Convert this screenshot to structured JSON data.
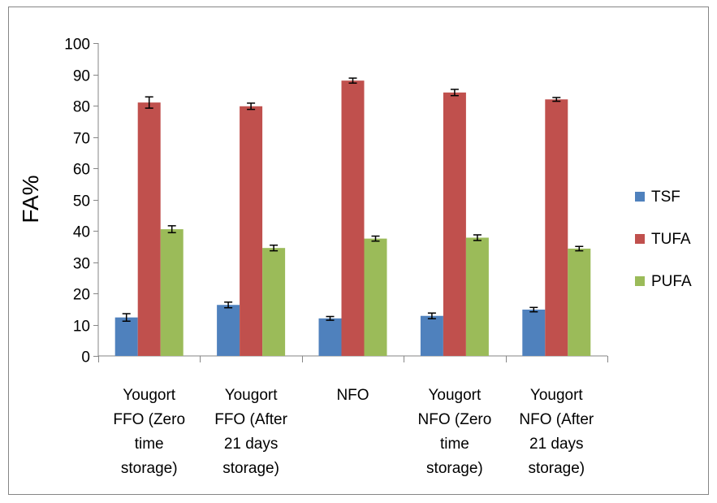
{
  "chart_data": {
    "type": "bar",
    "title": "",
    "xlabel": "",
    "ylabel": "FA%",
    "ylim": [
      0,
      100
    ],
    "yticks": [
      0,
      10,
      20,
      30,
      40,
      50,
      60,
      70,
      80,
      90,
      100
    ],
    "grid": false,
    "legend_position": "right",
    "categories": [
      [
        "Yougort",
        "FFO (Zero",
        "time",
        "storage)"
      ],
      [
        "Yougort",
        "FFO (After",
        "21 days",
        "storage)"
      ],
      [
        "NFO"
      ],
      [
        "Yougort",
        "NFO  (Zero",
        "time",
        "storage)"
      ],
      [
        "Yougort",
        "NFO  (After",
        "21 days",
        "storage)"
      ]
    ],
    "series": [
      {
        "name": "TSF",
        "color": "#4F81BD",
        "values": [
          12.3,
          16.3,
          12.0,
          12.8,
          14.8
        ],
        "errors": [
          1.2,
          0.9,
          0.6,
          0.9,
          0.7
        ]
      },
      {
        "name": "TUFA",
        "color": "#C0504D",
        "values": [
          81.0,
          79.8,
          88.0,
          84.2,
          82.0
        ],
        "errors": [
          1.8,
          1.0,
          0.8,
          1.0,
          0.6
        ]
      },
      {
        "name": "PUFA",
        "color": "#9BBB59",
        "values": [
          40.5,
          34.5,
          37.5,
          37.8,
          34.3
        ],
        "errors": [
          1.1,
          0.9,
          0.8,
          0.9,
          0.7
        ]
      }
    ]
  }
}
